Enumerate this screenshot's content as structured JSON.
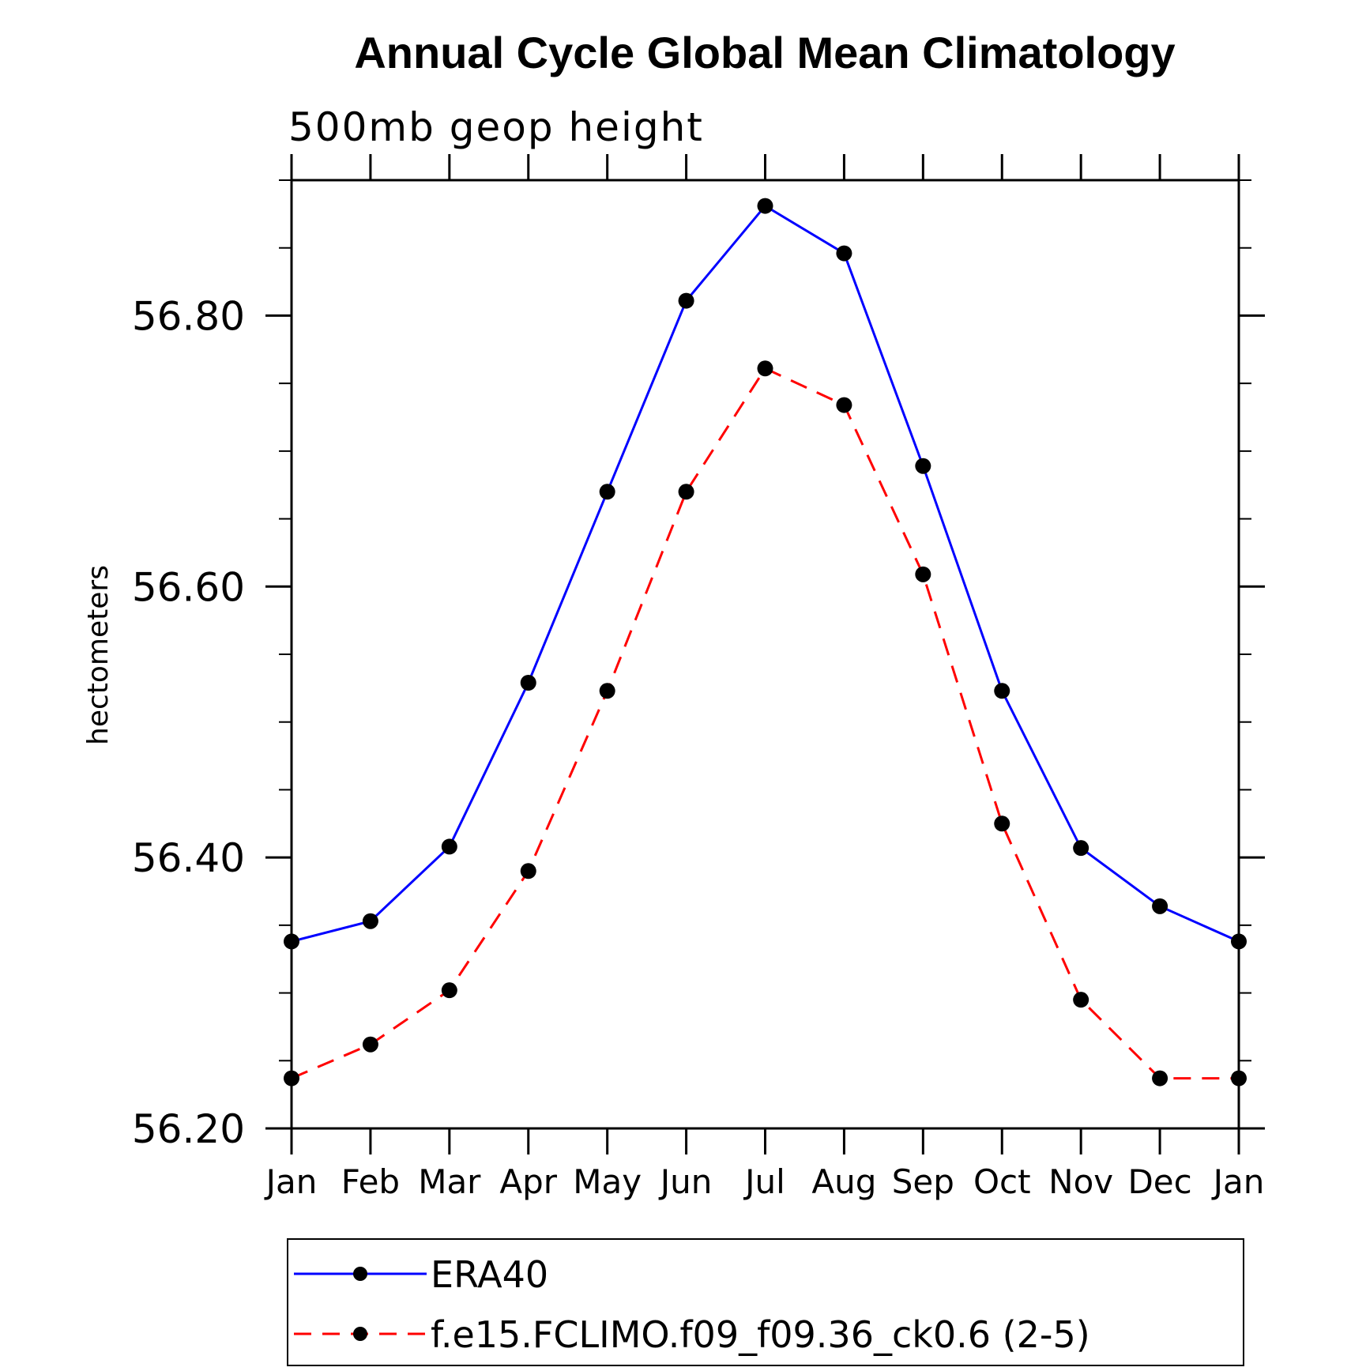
{
  "chart_data": {
    "type": "line",
    "title": "Annual Cycle Global Mean Climatology",
    "subtitle": "500mb geop height",
    "ylabel": "hectometers",
    "xlabel": "",
    "categories": [
      "Jan",
      "Feb",
      "Mar",
      "Apr",
      "May",
      "Jun",
      "Jul",
      "Aug",
      "Sep",
      "Oct",
      "Nov",
      "Dec",
      "Jan"
    ],
    "ylim": [
      56.2,
      56.9
    ],
    "yticks_major": [
      56.2,
      56.4,
      56.6,
      56.8
    ],
    "ytick_labels": [
      "56.20",
      "56.40",
      "56.60",
      "56.80"
    ],
    "grid": false,
    "legend_position": "bottom",
    "series": [
      {
        "name": "ERA40",
        "color": "#0000ff",
        "line_style": "solid",
        "marker": "filled-circle",
        "values": [
          56.338,
          56.353,
          56.408,
          56.529,
          56.67,
          56.811,
          56.881,
          56.846,
          56.689,
          56.523,
          56.407,
          56.364,
          56.338
        ]
      },
      {
        "name": "f.e15.FCLIMO.f09_f09.36_ck0.6 (2-5)",
        "color": "#ff0000",
        "line_style": "dashed",
        "marker": "filled-circle",
        "values": [
          56.237,
          56.262,
          56.302,
          56.39,
          56.523,
          56.67,
          56.761,
          56.734,
          56.609,
          56.425,
          56.295,
          56.237,
          56.237
        ]
      }
    ]
  }
}
